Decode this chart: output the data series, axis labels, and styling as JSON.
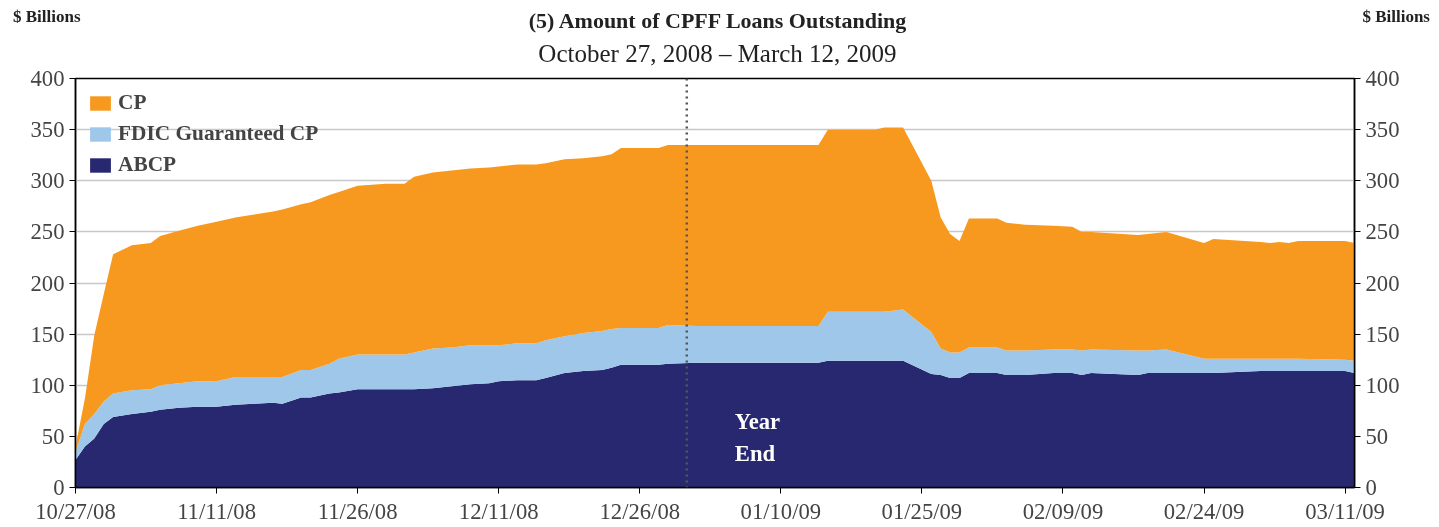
{
  "chart_data": {
    "type": "area",
    "stacked": true,
    "title": "(5) Amount of CPFF Loans Outstanding",
    "subtitle": "October 27, 2008 – March 12, 2009",
    "ylabel": "$ Billions",
    "y2label": "$ Billions",
    "x": [
      "2008-10-27",
      "2008-10-28",
      "2008-10-29",
      "2008-10-30",
      "2008-10-31",
      "2008-11-02",
      "2008-11-04",
      "2008-11-05",
      "2008-11-07",
      "2008-11-09",
      "2008-11-11",
      "2008-11-13",
      "2008-11-15",
      "2008-11-17",
      "2008-11-18",
      "2008-11-20",
      "2008-11-21",
      "2008-11-23",
      "2008-11-24",
      "2008-11-26",
      "2008-11-29",
      "2008-12-01",
      "2008-12-02",
      "2008-12-04",
      "2008-12-06",
      "2008-12-08",
      "2008-12-10",
      "2008-12-11",
      "2008-12-13",
      "2008-12-15",
      "2008-12-16",
      "2008-12-18",
      "2008-12-20",
      "2008-12-22",
      "2008-12-23",
      "2008-12-24",
      "2008-12-28",
      "2008-12-29",
      "2009-01-01",
      "2009-01-14",
      "2009-01-15",
      "2009-01-20",
      "2009-01-21",
      "2009-01-23",
      "2009-01-26",
      "2009-01-27",
      "2009-01-28",
      "2009-01-29",
      "2009-01-30",
      "2009-02-02",
      "2009-02-03",
      "2009-02-05",
      "2009-02-08",
      "2009-02-10",
      "2009-02-11",
      "2009-02-12",
      "2009-02-17",
      "2009-02-18",
      "2009-02-20",
      "2009-02-24",
      "2009-02-25",
      "2009-03-02",
      "2009-03-03",
      "2009-03-04",
      "2009-03-05",
      "2009-03-06",
      "2009-03-11",
      "2009-03-12"
    ],
    "series": [
      {
        "name": "ABCP",
        "color": "#282870",
        "values": [
          27,
          40,
          48,
          62,
          69,
          72,
          74,
          76,
          78,
          79,
          79,
          81,
          82,
          83,
          82,
          88,
          88,
          92,
          93,
          96,
          96,
          96,
          96,
          97,
          99,
          101,
          102,
          104,
          105,
          105,
          107,
          112,
          114,
          115,
          117,
          120,
          120,
          121,
          122,
          122,
          124,
          124,
          124,
          124,
          111,
          110,
          107,
          107,
          112,
          112,
          110,
          110,
          112,
          112,
          110,
          112,
          110,
          112,
          112,
          112,
          112,
          114,
          114,
          114,
          114,
          114,
          114,
          112
        ]
      },
      {
        "name": "FDIC Guaranteed CP",
        "color": "#9fc7ea",
        "values": [
          8,
          22,
          24,
          22,
          23,
          23,
          22,
          24,
          24,
          25,
          25,
          27,
          26,
          25,
          26,
          27,
          27,
          29,
          33,
          34,
          34,
          34,
          36,
          39,
          38,
          38,
          37,
          35,
          36,
          36,
          37,
          36,
          37,
          38,
          38,
          36,
          36,
          38,
          36,
          36,
          48,
          48,
          48,
          50,
          41,
          26,
          25,
          25,
          25,
          25,
          24,
          24,
          23,
          23,
          24,
          23,
          24,
          22,
          23,
          14,
          14,
          12,
          12,
          12,
          12,
          12,
          11,
          12
        ]
      },
      {
        "name": "CP",
        "color": "#f7991f",
        "values": [
          5,
          25,
          77,
          105,
          136,
          142,
          143,
          146,
          149,
          152,
          156,
          156,
          159,
          162,
          164,
          162,
          164,
          165,
          163,
          165,
          167,
          167,
          172,
          172,
          173,
          173,
          174,
          175,
          175,
          175,
          173,
          173,
          171,
          171,
          171,
          176,
          176,
          176,
          177,
          177,
          178,
          178,
          180,
          178,
          148,
          128,
          116,
          109,
          126,
          126,
          125,
          123,
          121,
          120,
          116,
          115,
          113,
          114,
          115,
          113,
          117,
          114,
          113,
          114,
          113,
          115,
          116,
          115
        ]
      }
    ],
    "xlim": [
      "2008-10-27",
      "2009-03-12"
    ],
    "xticks": [
      {
        "value": "2008-10-27",
        "label": "10/27/08"
      },
      {
        "value": "2008-11-11",
        "label": "11/11/08"
      },
      {
        "value": "2008-11-26",
        "label": "11/26/08"
      },
      {
        "value": "2008-12-11",
        "label": "12/11/08"
      },
      {
        "value": "2008-12-26",
        "label": "12/26/08"
      },
      {
        "value": "2009-01-10",
        "label": "01/10/09"
      },
      {
        "value": "2009-01-25",
        "label": "01/25/09"
      },
      {
        "value": "2009-02-09",
        "label": "02/09/09"
      },
      {
        "value": "2009-02-24",
        "label": "02/24/09"
      },
      {
        "value": "2009-03-11",
        "label": "03/11/09"
      }
    ],
    "ylim": [
      0,
      400
    ],
    "yticks": [
      0,
      50,
      100,
      150,
      200,
      250,
      300,
      350,
      400
    ],
    "y2lim": [
      0,
      400
    ],
    "y2ticks": [
      0,
      50,
      100,
      150,
      200,
      250,
      300,
      350,
      400
    ],
    "ref_lines": [
      {
        "axis": "x",
        "value": "2008-12-31",
        "label": "Year End",
        "color": "#555555",
        "line_style": "dotted"
      }
    ],
    "grid": "y",
    "legend": "top left"
  }
}
